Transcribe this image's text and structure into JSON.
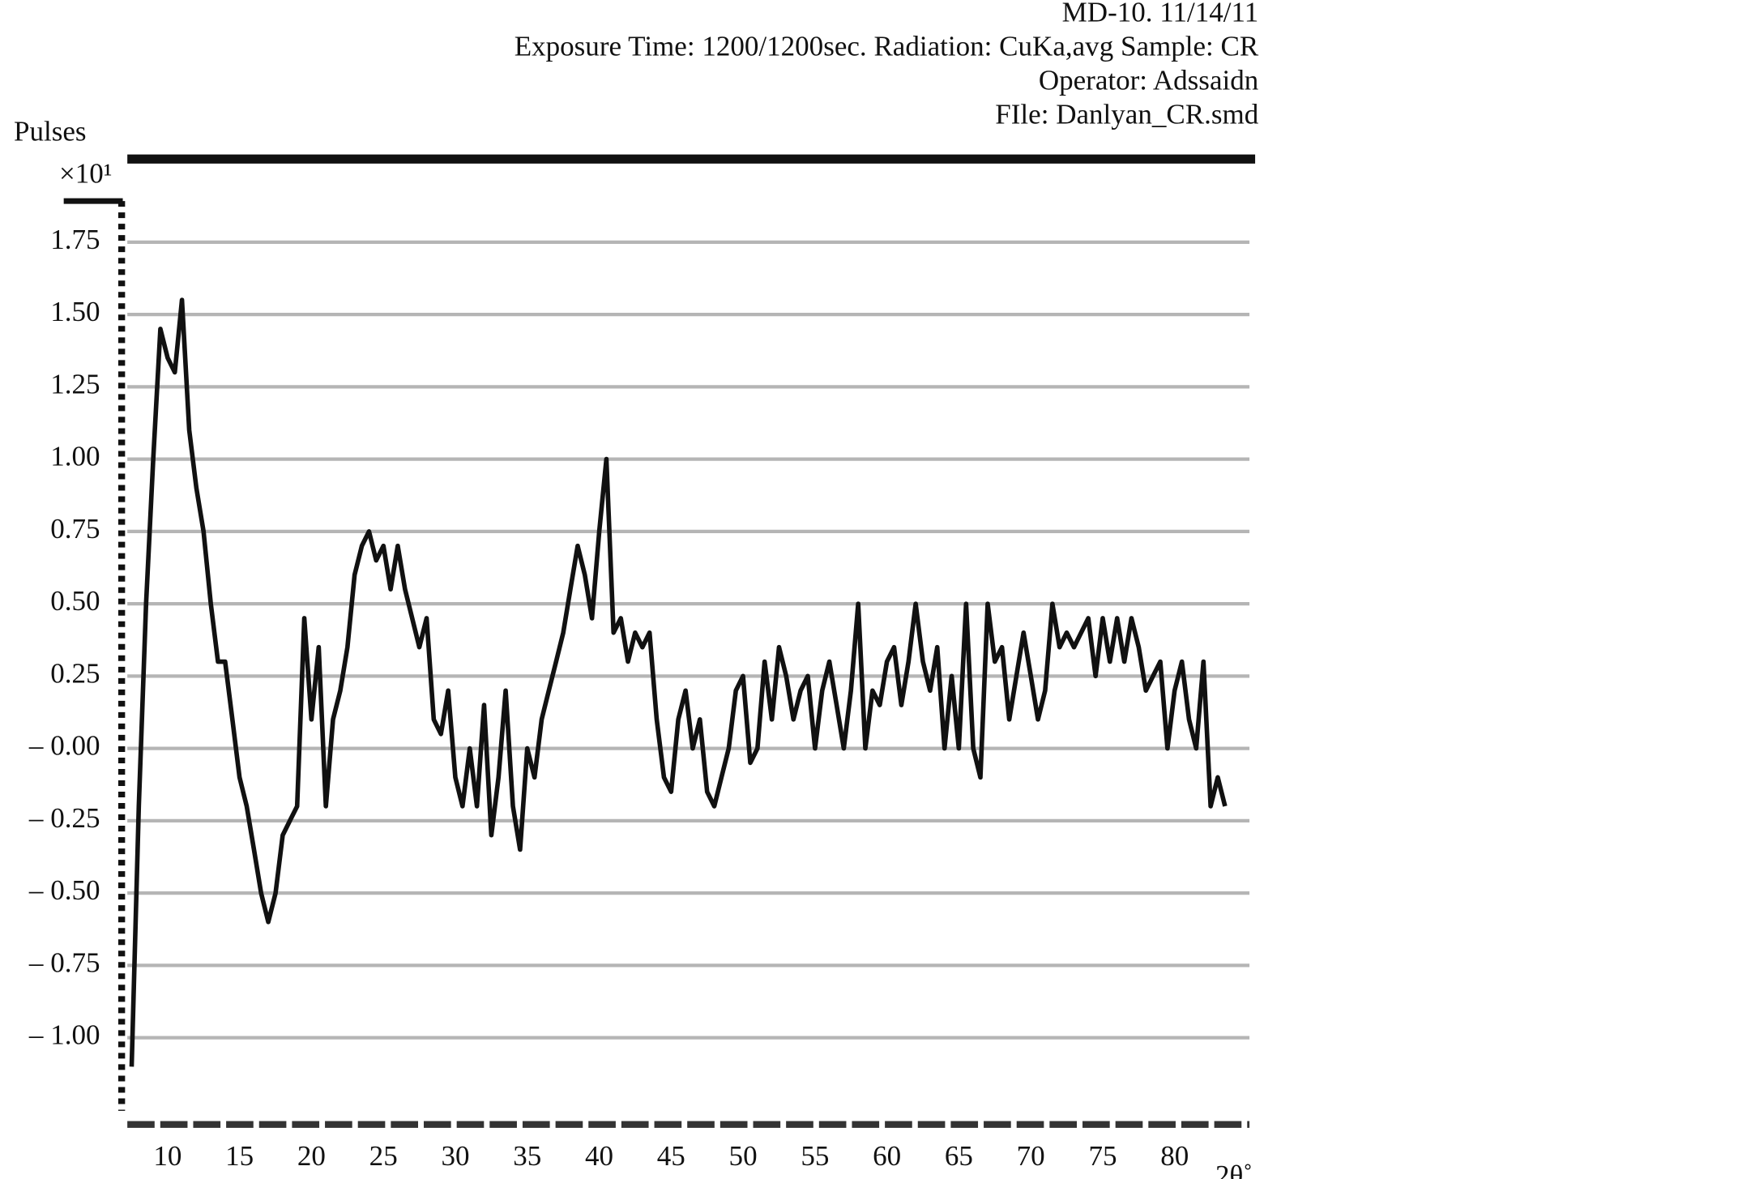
{
  "chart_data": {
    "type": "line",
    "title_lines": [
      "MD-10. 11/14/11",
      "Exposure Time: 1200/1200sec. Radiation: CuKa,avg Sample: CR",
      "Operator: Adssaidn",
      "FIle: Danlyan_CR.smd"
    ],
    "y_label": "Pulses",
    "y_multiplier": "×10¹",
    "x_label": "2θ˚",
    "xlim": [
      7.2,
      85.2
    ],
    "ylim": [
      -1.3,
      1.9
    ],
    "xticks": [
      10,
      15,
      20,
      25,
      30,
      35,
      40,
      45,
      50,
      55,
      60,
      65,
      70,
      75,
      80
    ],
    "yticks": [
      {
        "value": 1.75,
        "label": "1.75"
      },
      {
        "value": 1.5,
        "label": "1.50"
      },
      {
        "value": 1.25,
        "label": "1.25"
      },
      {
        "value": 1,
        "label": "1.00"
      },
      {
        "value": 0.75,
        "label": "0.75"
      },
      {
        "value": 0.5,
        "label": "0.50"
      },
      {
        "value": 0.25,
        "label": "0.25"
      },
      {
        "value": 0,
        "label": "– 0.00"
      },
      {
        "value": -0.25,
        "label": "– 0.25"
      },
      {
        "value": -0.5,
        "label": "– 0.50"
      },
      {
        "value": -0.75,
        "label": "– 0.75"
      },
      {
        "value": -1,
        "label": "– 1.00"
      }
    ],
    "grid": true,
    "color": "#111111",
    "x": [
      7.5,
      8,
      8.5,
      9,
      9.5,
      10,
      10.5,
      11,
      11.5,
      12,
      12.5,
      13,
      13.5,
      14,
      14.5,
      15,
      15.5,
      16,
      16.5,
      17,
      17.5,
      18,
      18.5,
      19,
      19.5,
      20,
      20.5,
      21,
      21.5,
      22,
      22.5,
      23,
      23.5,
      24,
      24.5,
      25,
      25.5,
      26,
      26.5,
      27,
      27.5,
      28,
      28.5,
      29,
      29.5,
      30,
      30.5,
      31,
      31.5,
      32,
      32.5,
      33,
      33.5,
      34,
      34.5,
      35,
      35.5,
      36,
      36.5,
      37,
      37.5,
      38,
      38.5,
      39,
      39.5,
      40,
      40.5,
      41,
      41.5,
      42,
      42.5,
      43,
      43.5,
      44,
      44.5,
      45,
      45.5,
      46,
      46.5,
      47,
      47.5,
      48,
      48.5,
      49,
      49.5,
      50,
      50.5,
      51,
      51.5,
      52,
      52.5,
      53,
      53.5,
      54,
      54.5,
      55,
      55.5,
      56,
      56.5,
      57,
      57.5,
      58,
      58.5,
      59,
      59.5,
      60,
      60.5,
      61,
      61.5,
      62,
      62.5,
      63,
      63.5,
      64,
      64.5,
      65,
      65.5,
      66,
      66.5,
      67,
      67.5,
      68,
      68.5,
      69,
      69.5,
      70,
      70.5,
      71,
      71.5,
      72,
      72.5,
      73,
      73.5,
      74,
      74.5,
      75,
      75.5,
      76,
      76.5,
      77,
      77.5,
      78,
      78.5,
      79,
      79.5,
      80,
      80.5,
      81,
      81.5,
      82,
      82.5,
      83,
      83.5
    ],
    "values": [
      -1.1,
      -0.2,
      0.5,
      1.0,
      1.45,
      1.35,
      1.3,
      1.55,
      1.1,
      0.9,
      0.75,
      0.5,
      0.3,
      0.3,
      0.1,
      -0.1,
      -0.2,
      -0.35,
      -0.5,
      -0.6,
      -0.5,
      -0.3,
      -0.25,
      -0.2,
      0.45,
      0.1,
      0.35,
      -0.2,
      0.1,
      0.2,
      0.35,
      0.6,
      0.7,
      0.75,
      0.65,
      0.7,
      0.55,
      0.7,
      0.55,
      0.45,
      0.35,
      0.45,
      0.1,
      0.05,
      0.2,
      -0.1,
      -0.2,
      0.0,
      -0.2,
      0.15,
      -0.3,
      -0.1,
      0.2,
      -0.2,
      -0.35,
      0.0,
      -0.1,
      0.1,
      0.2,
      0.3,
      0.4,
      0.55,
      0.7,
      0.6,
      0.45,
      0.75,
      1.0,
      0.4,
      0.45,
      0.3,
      0.4,
      0.35,
      0.4,
      0.1,
      -0.1,
      -0.15,
      0.1,
      0.2,
      0.0,
      0.1,
      -0.15,
      -0.2,
      -0.1,
      0.0,
      0.2,
      0.25,
      -0.05,
      0.0,
      0.3,
      0.1,
      0.35,
      0.25,
      0.1,
      0.2,
      0.25,
      0.0,
      0.2,
      0.3,
      0.15,
      0.0,
      0.2,
      0.5,
      0.0,
      0.2,
      0.15,
      0.3,
      0.35,
      0.15,
      0.3,
      0.5,
      0.3,
      0.2,
      0.35,
      0.0,
      0.25,
      0.0,
      0.5,
      0.0,
      -0.1,
      0.5,
      0.3,
      0.35,
      0.1,
      0.25,
      0.4,
      0.25,
      0.1,
      0.2,
      0.5,
      0.35,
      0.4,
      0.35,
      0.4,
      0.45,
      0.25,
      0.45,
      0.3,
      0.45,
      0.3,
      0.45,
      0.35,
      0.2,
      0.25,
      0.3,
      0.0,
      0.2,
      0.3,
      0.1,
      0.0,
      0.3,
      -0.2,
      -0.1,
      -0.2
    ]
  }
}
